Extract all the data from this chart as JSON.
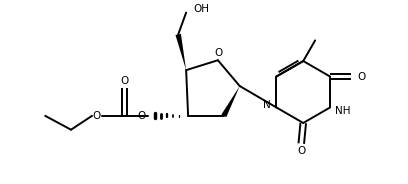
{
  "bg_color": "#ffffff",
  "lw": 1.4,
  "lw_bold": 3.0,
  "fs": 7.5,
  "fig_width": 4.08,
  "fig_height": 1.84,
  "dpi": 100,
  "xlim": [
    0,
    10.2
  ],
  "ylim": [
    0,
    4.6
  ]
}
